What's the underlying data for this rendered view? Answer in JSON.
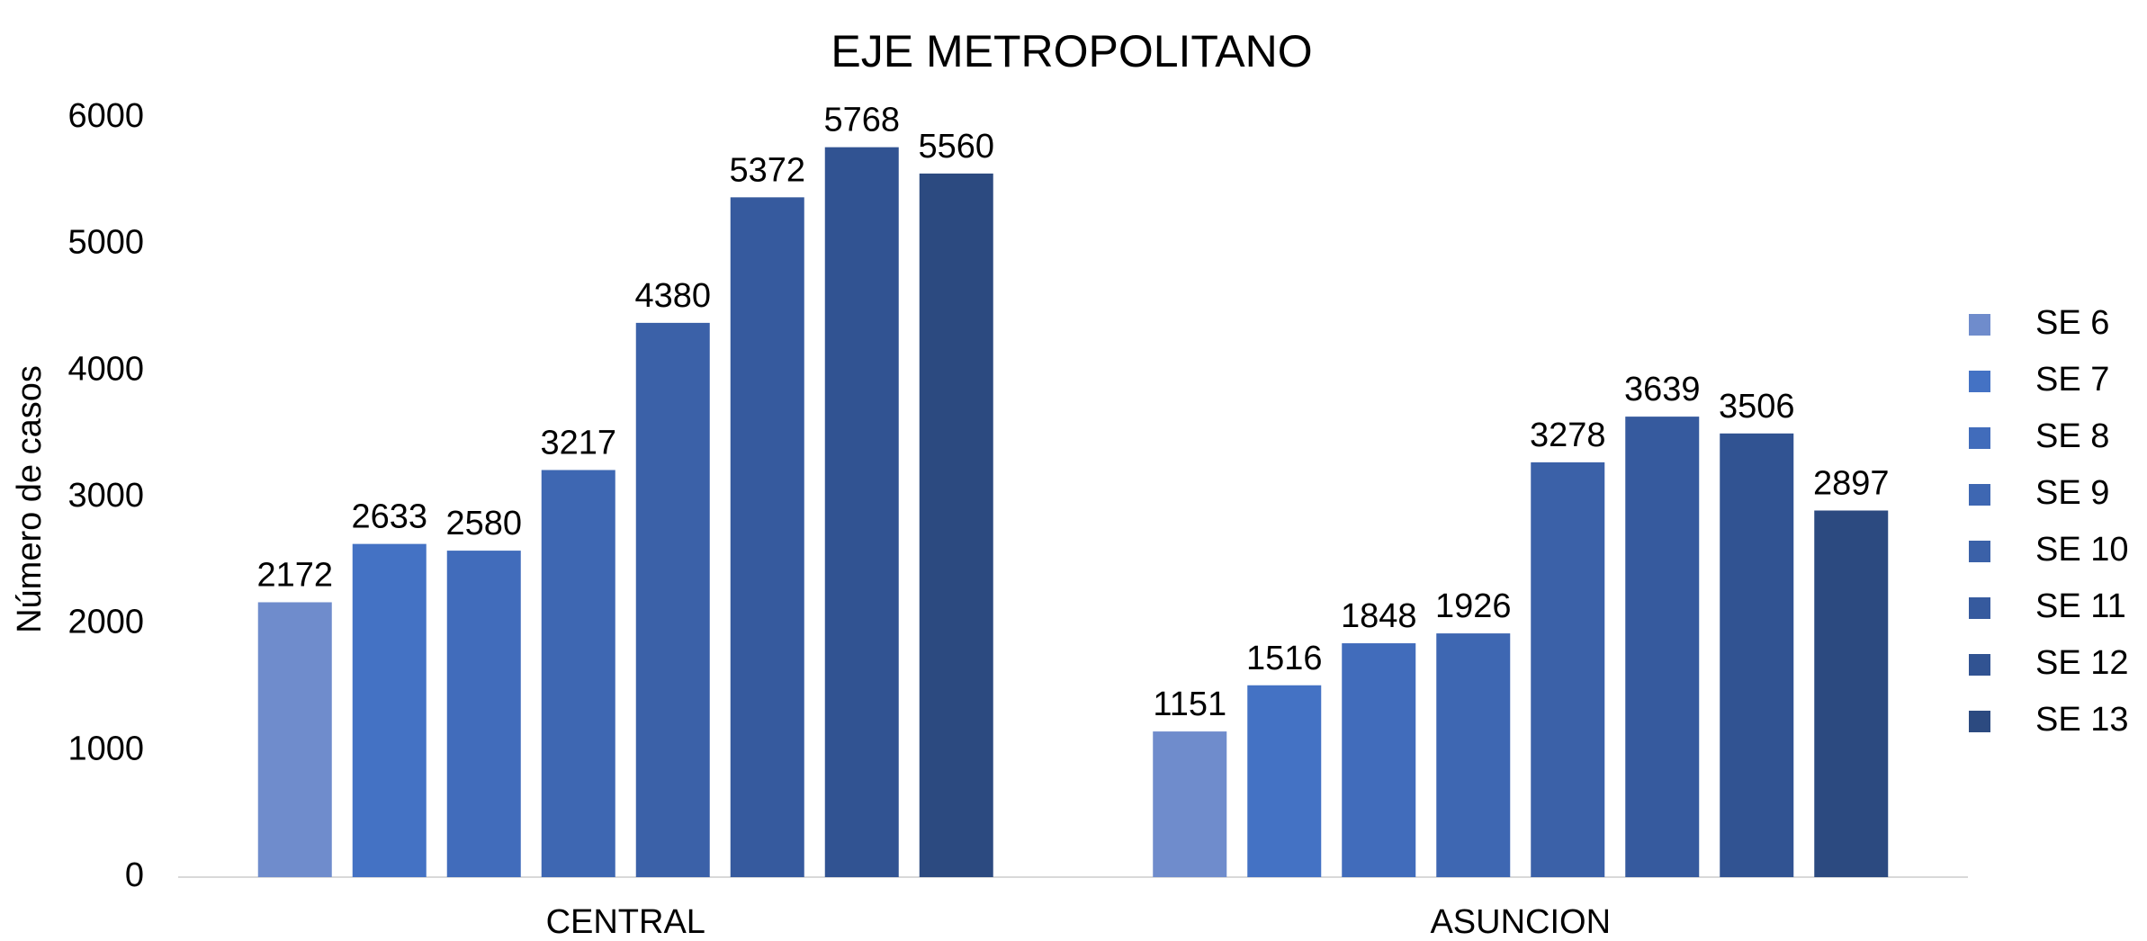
{
  "chart_data": {
    "type": "bar",
    "title": "EJE METROPOLITANO",
    "y_label": "Número de casos",
    "categories": [
      "CENTRAL",
      "ASUNCION"
    ],
    "series": [
      {
        "name": "SE 6",
        "color": "#6f8ccc",
        "values": [
          2172,
          1151
        ]
      },
      {
        "name": "SE 7",
        "color": "#4472c4",
        "values": [
          2633,
          1516
        ]
      },
      {
        "name": "SE 8",
        "color": "#416cbb",
        "values": [
          2580,
          1848
        ]
      },
      {
        "name": "SE 9",
        "color": "#3e67b2",
        "values": [
          3217,
          1926
        ]
      },
      {
        "name": "SE 10",
        "color": "#3b61a8",
        "values": [
          4380,
          3278
        ]
      },
      {
        "name": "SE 11",
        "color": "#365a9e",
        "values": [
          5372,
          3639
        ]
      },
      {
        "name": "SE 12",
        "color": "#315392",
        "values": [
          5768,
          3506
        ]
      },
      {
        "name": "SE 13",
        "color": "#2c4a80",
        "values": [
          5560,
          2897
        ]
      }
    ],
    "ylim": [
      0,
      6000
    ],
    "yticks": [
      0,
      1000,
      2000,
      3000,
      4000,
      5000,
      6000
    ],
    "grid": false,
    "legend": "right"
  }
}
